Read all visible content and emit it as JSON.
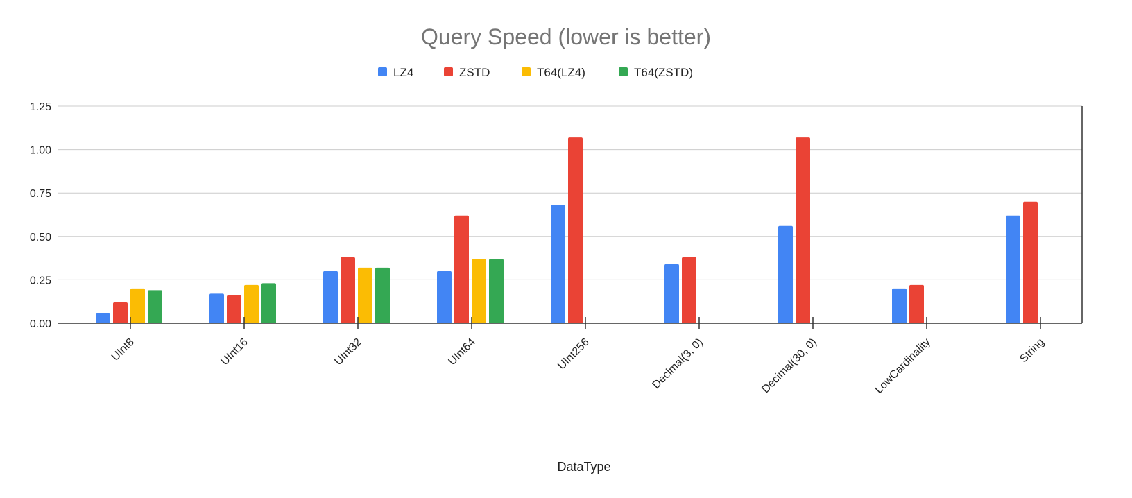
{
  "chart_data": {
    "type": "bar",
    "title": "Query Speed (lower is better)",
    "xlabel": "DataType",
    "ylabel": "",
    "categories": [
      "UInt8",
      "UInt16",
      "UInt32",
      "UInt64",
      "UInt256",
      "Decimal(3, 0)",
      "Decimal(30, 0)",
      "LowCardinality",
      "String"
    ],
    "series": [
      {
        "name": "LZ4",
        "color": "#4285F4",
        "values": [
          0.06,
          0.17,
          0.3,
          0.3,
          0.68,
          0.34,
          0.56,
          0.2,
          0.62
        ]
      },
      {
        "name": "ZSTD",
        "color": "#EA4335",
        "values": [
          0.12,
          0.16,
          0.38,
          0.62,
          1.07,
          0.38,
          1.07,
          0.22,
          0.7
        ]
      },
      {
        "name": "T64(LZ4)",
        "color": "#FBBC04",
        "values": [
          0.2,
          0.22,
          0.32,
          0.37,
          null,
          null,
          null,
          null,
          null
        ]
      },
      {
        "name": "T64(ZSTD)",
        "color": "#34A853",
        "values": [
          0.19,
          0.23,
          0.32,
          0.37,
          null,
          null,
          null,
          null,
          null
        ]
      }
    ],
    "ylim": [
      0,
      1.25
    ],
    "yticks": [
      "0.00",
      "0.25",
      "0.50",
      "0.75",
      "1.00",
      "1.25"
    ],
    "grid": true,
    "legend_position": "top-center"
  }
}
